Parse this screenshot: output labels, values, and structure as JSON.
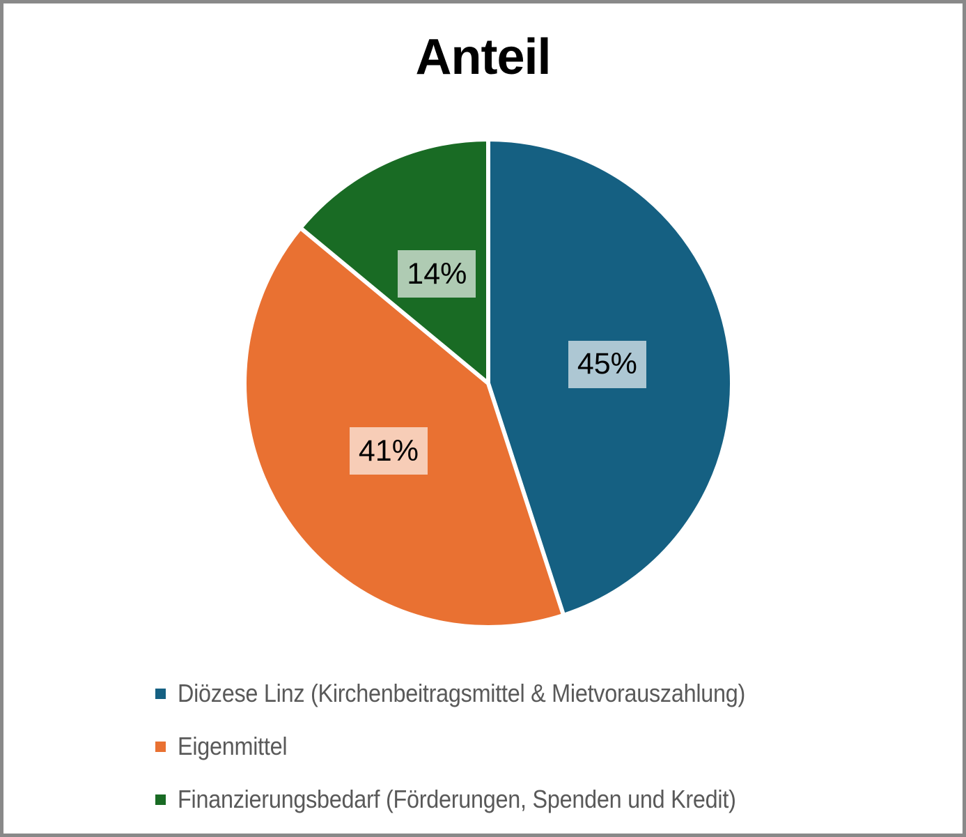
{
  "frame": {
    "border_color": "#898989",
    "background": "#ffffff"
  },
  "chart_data": {
    "type": "pie",
    "title": "Anteil",
    "categories": [
      "Diözese Linz (Kirchenbeitragsmittel & Mietvorauszahlung)",
      "Eigenmittel",
      "Finanzierungsbedarf (Förderungen, Spenden und Kredit)"
    ],
    "values": [
      45,
      41,
      14
    ],
    "labels": [
      "45%",
      "41%",
      "14%"
    ],
    "slice_colors": [
      "#156082",
      "#E97132",
      "#196B24"
    ],
    "label_bg_colors": [
      "#ADC7D3",
      "#F7CDB7",
      "#AFCBB3"
    ],
    "label_text_color": "#000000",
    "legend_text_color": "#595959",
    "start_angle_deg": 0,
    "direction": "clockwise",
    "legend_position": "bottom-left",
    "separator_color": "#ffffff"
  }
}
